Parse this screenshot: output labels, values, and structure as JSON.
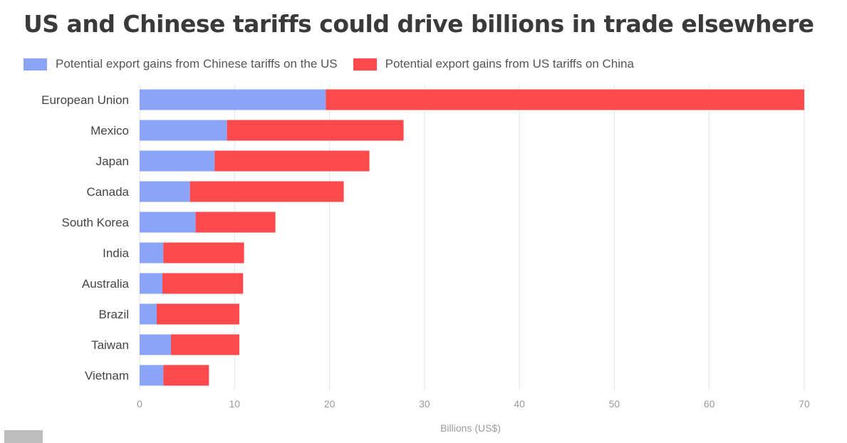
{
  "title": "US and Chinese tariffs could drive billions in trade elsewhere",
  "chart_data": {
    "type": "bar",
    "orientation": "horizontal",
    "stacked": true,
    "categories": [
      "European Union",
      "Mexico",
      "Japan",
      "Canada",
      "South Korea",
      "India",
      "Australia",
      "Brazil",
      "Taiwan",
      "Vietnam"
    ],
    "series": [
      {
        "name": "Potential export gains from Chinese tariffs on the US",
        "color": "#8aa4f7",
        "values": [
          19.6,
          9.2,
          7.9,
          5.3,
          5.9,
          2.5,
          2.4,
          1.8,
          3.3,
          2.5
        ]
      },
      {
        "name": "Potential export gains from US tariffs on China",
        "color": "#ff4a4d",
        "values": [
          50.4,
          18.6,
          16.3,
          16.2,
          8.4,
          8.5,
          8.5,
          8.7,
          7.2,
          4.8
        ]
      }
    ],
    "xlabel": "Billions (US$)",
    "ylabel": "",
    "xlim": [
      0,
      70
    ],
    "xticks": [
      "0",
      "10",
      "20",
      "30",
      "40",
      "50",
      "60",
      "70"
    ],
    "grid": true,
    "legend_position": "top-left"
  }
}
